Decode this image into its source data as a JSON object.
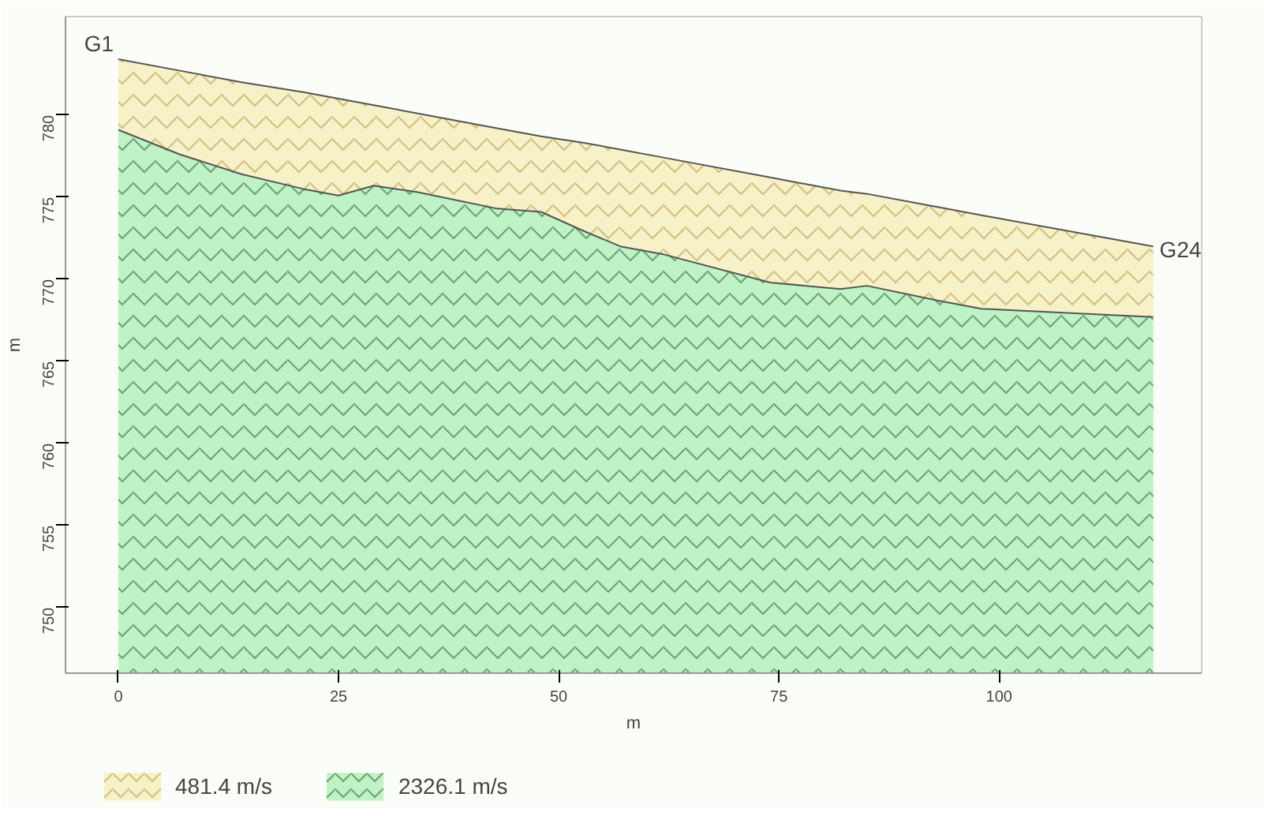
{
  "chart_data": {
    "type": "area",
    "xlabel": "m",
    "ylabel": "m",
    "xlim": [
      -6,
      123
    ],
    "ylim": [
      746,
      786
    ],
    "xticks": [
      0,
      25,
      50,
      75,
      100
    ],
    "yticks": [
      750,
      755,
      760,
      765,
      770,
      775,
      780
    ],
    "grid": false,
    "legend": "bottom",
    "annotations": [
      {
        "text": "G1",
        "x": 0,
        "y": 783.4
      },
      {
        "text": "G24",
        "x": 117.5,
        "y": 772
      }
    ],
    "series": [
      {
        "name": "481.4 m/s",
        "color": "#f7f1c8",
        "x": [
          0,
          7,
          14,
          21,
          25,
          29,
          34,
          43,
          48,
          53,
          57,
          62,
          74,
          82,
          85,
          93,
          98,
          117.5
        ],
        "values": [
          783.4,
          782.7,
          782.0,
          781.4,
          781.0,
          780.6,
          780.1,
          779.2,
          778.7,
          778.3,
          777.9,
          777.4,
          776.2,
          775.4,
          775.2,
          774.4,
          773.9,
          772.0
        ]
      },
      {
        "name": "2326.1 m/s",
        "color": "#bff2c4",
        "x": [
          0,
          7,
          14,
          21,
          25,
          29,
          34,
          43,
          48,
          53,
          57,
          62,
          74,
          82,
          85,
          93,
          98,
          117.5
        ],
        "values": [
          779.1,
          777.6,
          776.4,
          775.5,
          775.1,
          775.7,
          775.3,
          774.3,
          774.1,
          772.9,
          772.0,
          771.5,
          769.8,
          769.4,
          769.6,
          768.7,
          768.2,
          767.7
        ]
      }
    ]
  }
}
